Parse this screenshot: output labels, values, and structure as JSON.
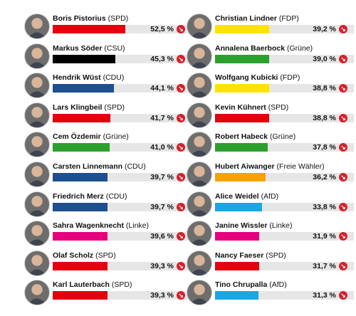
{
  "chart_data": {
    "type": "bar",
    "title": "",
    "xlabel": "",
    "ylabel": "",
    "xlim": [
      0,
      100
    ],
    "colors": {
      "SPD": "#e3000f",
      "CSU": "#000000",
      "CDU": "#1d4f91",
      "Grüne": "#2ca02c",
      "FDP": "#ffe300",
      "Linke": "#e6007e",
      "Freie Wähler": "#f5a300",
      "AfD": "#1aa5e6",
      "trend_down": "#d6202a"
    },
    "items": [
      {
        "name": "Boris Pistorius",
        "party": "SPD",
        "value": 52.5,
        "value_label": "52,5 %",
        "trend": "down"
      },
      {
        "name": "Markus Söder",
        "party": "CSU",
        "value": 45.3,
        "value_label": "45,3 %",
        "trend": "down"
      },
      {
        "name": "Hendrik Wüst",
        "party": "CDU",
        "value": 44.1,
        "value_label": "44,1 %",
        "trend": "down"
      },
      {
        "name": "Lars Klingbeil",
        "party": "SPD",
        "value": 41.7,
        "value_label": "41,7 %",
        "trend": "down"
      },
      {
        "name": "Cem Özdemir",
        "party": "Grüne",
        "value": 41.0,
        "value_label": "41,0 %",
        "trend": "down"
      },
      {
        "name": "Carsten Linnemann",
        "party": "CDU",
        "value": 39.7,
        "value_label": "39,7 %",
        "trend": "down"
      },
      {
        "name": "Friedrich Merz",
        "party": "CDU",
        "value": 39.7,
        "value_label": "39,7 %",
        "trend": "down"
      },
      {
        "name": "Sahra Wagenknecht",
        "party": "Linke",
        "value": 39.6,
        "value_label": "39,6 %",
        "trend": "down"
      },
      {
        "name": "Olaf Scholz",
        "party": "SPD",
        "value": 39.3,
        "value_label": "39,3 %",
        "trend": "down"
      },
      {
        "name": "Karl Lauterbach",
        "party": "SPD",
        "value": 39.3,
        "value_label": "39,3 %",
        "trend": "down"
      },
      {
        "name": "Christian Lindner",
        "party": "FDP",
        "value": 39.2,
        "value_label": "39,2 %",
        "trend": "down"
      },
      {
        "name": "Annalena Baerbock",
        "party": "Grüne",
        "value": 39.0,
        "value_label": "39,0 %",
        "trend": "down"
      },
      {
        "name": "Wolfgang Kubicki",
        "party": "FDP",
        "value": 38.8,
        "value_label": "38,8 %",
        "trend": "down"
      },
      {
        "name": "Kevin Kühnert",
        "party": "SPD",
        "value": 38.8,
        "value_label": "38,8 %",
        "trend": "down"
      },
      {
        "name": "Robert Habeck",
        "party": "Grüne",
        "value": 37.8,
        "value_label": "37,8 %",
        "trend": "down"
      },
      {
        "name": "Hubert Aiwanger",
        "party": "Freie Wähler",
        "value": 36.2,
        "value_label": "36,2 %",
        "trend": "down"
      },
      {
        "name": "Alice Weidel",
        "party": "AfD",
        "value": 33.8,
        "value_label": "33,8 %",
        "trend": "down"
      },
      {
        "name": "Janine Wissler",
        "party": "Linke",
        "value": 31.9,
        "value_label": "31,9 %",
        "trend": "down"
      },
      {
        "name": "Nancy Faeser",
        "party": "SPD",
        "value": 31.7,
        "value_label": "31,7 %",
        "trend": "down"
      },
      {
        "name": "Tino Chrupalla",
        "party": "AfD",
        "value": 31.3,
        "value_label": "31,3 %",
        "trend": "down"
      }
    ]
  }
}
